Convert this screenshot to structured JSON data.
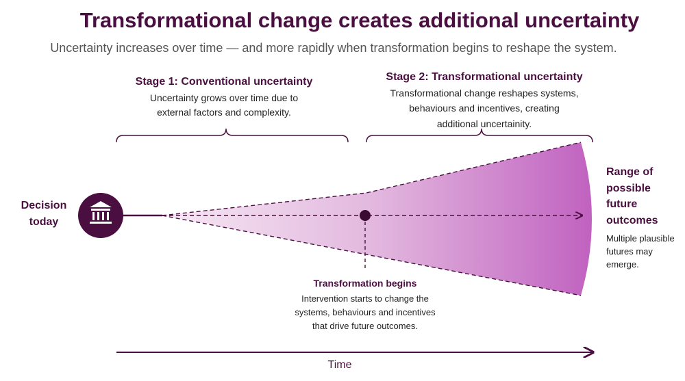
{
  "header": {
    "title": "Transformational change creates additional uncertainty",
    "subtitle": "Uncertainty increases over time — and more rapidly when transformation begins to reshape the system."
  },
  "stage1": {
    "title": "Stage 1: Conventional uncertainty",
    "lines": [
      "Uncertainty grows over time due to",
      "external factors and complexity."
    ]
  },
  "stage2": {
    "title": "Stage 2: Transformational uncertainty",
    "lines": [
      "Transformational change reshapes systems,",
      "behaviours and incentives, creating",
      "additional uncertainity."
    ]
  },
  "decision": {
    "lines": [
      "Decision",
      "today"
    ]
  },
  "outcomes": {
    "title_lines": [
      "Range of",
      "possible",
      "future",
      "outcomes"
    ],
    "lines": [
      "Multiple plausible",
      "futures may",
      "emerge."
    ]
  },
  "transformation": {
    "title": "Transformation begins",
    "lines": [
      "Intervention starts to change the",
      "systems, behaviours and incentives",
      "that drive future outcomes."
    ]
  },
  "axis": {
    "label": "Time"
  }
}
